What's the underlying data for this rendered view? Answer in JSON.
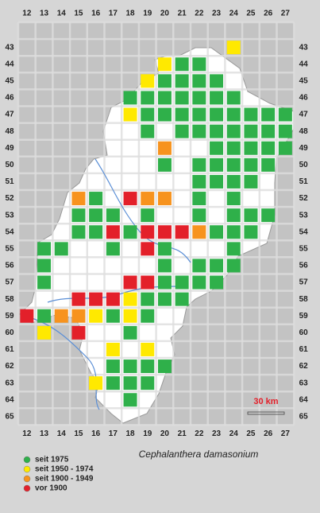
{
  "map": {
    "species": "Cephalanthera damasonium",
    "columns": [
      12,
      13,
      14,
      15,
      16,
      17,
      18,
      19,
      20,
      21,
      22,
      23,
      24,
      25,
      26,
      27
    ],
    "rows": [
      43,
      44,
      45,
      46,
      47,
      48,
      49,
      50,
      51,
      52,
      53,
      54,
      55,
      56,
      57,
      58,
      59,
      60,
      61,
      62,
      63,
      64,
      65
    ],
    "scale": "30 km",
    "legend": [
      {
        "name": "seit 1975",
        "color": "#2fb04a",
        "cells": [
          [
            21,
            44
          ],
          [
            22,
            44
          ],
          [
            20,
            45
          ],
          [
            21,
            45
          ],
          [
            22,
            45
          ],
          [
            23,
            45
          ],
          [
            18,
            46
          ],
          [
            19,
            46
          ],
          [
            20,
            46
          ],
          [
            21,
            46
          ],
          [
            22,
            46
          ],
          [
            23,
            46
          ],
          [
            24,
            46
          ],
          [
            19,
            47
          ],
          [
            20,
            47
          ],
          [
            21,
            47
          ],
          [
            22,
            47
          ],
          [
            23,
            47
          ],
          [
            24,
            47
          ],
          [
            25,
            47
          ],
          [
            26,
            47
          ],
          [
            27,
            47
          ],
          [
            19,
            48
          ],
          [
            21,
            48
          ],
          [
            22,
            48
          ],
          [
            23,
            48
          ],
          [
            24,
            48
          ],
          [
            25,
            48
          ],
          [
            26,
            48
          ],
          [
            27,
            48
          ],
          [
            23,
            49
          ],
          [
            24,
            49
          ],
          [
            25,
            49
          ],
          [
            26,
            49
          ],
          [
            27,
            49
          ],
          [
            20,
            50
          ],
          [
            22,
            50
          ],
          [
            23,
            50
          ],
          [
            24,
            50
          ],
          [
            25,
            50
          ],
          [
            26,
            50
          ],
          [
            22,
            51
          ],
          [
            23,
            51
          ],
          [
            24,
            51
          ],
          [
            25,
            51
          ],
          [
            16,
            52
          ],
          [
            22,
            52
          ],
          [
            24,
            52
          ],
          [
            15,
            53
          ],
          [
            16,
            53
          ],
          [
            17,
            53
          ],
          [
            19,
            53
          ],
          [
            22,
            53
          ],
          [
            24,
            53
          ],
          [
            25,
            53
          ],
          [
            26,
            53
          ],
          [
            15,
            54
          ],
          [
            16,
            54
          ],
          [
            18,
            54
          ],
          [
            23,
            54
          ],
          [
            24,
            54
          ],
          [
            25,
            54
          ],
          [
            13,
            55
          ],
          [
            14,
            55
          ],
          [
            17,
            55
          ],
          [
            20,
            55
          ],
          [
            24,
            55
          ],
          [
            13,
            56
          ],
          [
            20,
            56
          ],
          [
            22,
            56
          ],
          [
            23,
            56
          ],
          [
            24,
            56
          ],
          [
            13,
            57
          ],
          [
            20,
            57
          ],
          [
            21,
            57
          ],
          [
            22,
            57
          ],
          [
            23,
            57
          ],
          [
            19,
            58
          ],
          [
            20,
            58
          ],
          [
            21,
            58
          ],
          [
            13,
            59
          ],
          [
            17,
            59
          ],
          [
            19,
            59
          ],
          [
            18,
            60
          ],
          [
            17,
            62
          ],
          [
            18,
            62
          ],
          [
            19,
            62
          ],
          [
            20,
            62
          ],
          [
            17,
            63
          ],
          [
            18,
            63
          ],
          [
            19,
            63
          ],
          [
            18,
            64
          ]
        ]
      },
      {
        "name": "seit 1950 - 1974",
        "color": "#ffe900",
        "cells": [
          [
            24,
            43
          ],
          [
            20,
            44
          ],
          [
            19,
            45
          ],
          [
            18,
            47
          ],
          [
            18,
            58
          ],
          [
            16,
            59
          ],
          [
            18,
            59
          ],
          [
            13,
            60
          ],
          [
            17,
            61
          ],
          [
            19,
            61
          ],
          [
            16,
            63
          ]
        ]
      },
      {
        "name": "seit 1900 - 1949",
        "color": "#f7931e",
        "cells": [
          [
            20,
            49
          ],
          [
            15,
            52
          ],
          [
            19,
            52
          ],
          [
            20,
            52
          ],
          [
            22,
            54
          ],
          [
            14,
            59
          ],
          [
            15,
            59
          ]
        ]
      },
      {
        "name": "vor 1900",
        "color": "#e3202a",
        "cells": [
          [
            18,
            52
          ],
          [
            17,
            54
          ],
          [
            19,
            54
          ],
          [
            20,
            54
          ],
          [
            21,
            54
          ],
          [
            19,
            55
          ],
          [
            18,
            57
          ],
          [
            19,
            57
          ],
          [
            15,
            58
          ],
          [
            16,
            58
          ],
          [
            17,
            58
          ],
          [
            12,
            59
          ],
          [
            15,
            60
          ]
        ]
      }
    ]
  }
}
